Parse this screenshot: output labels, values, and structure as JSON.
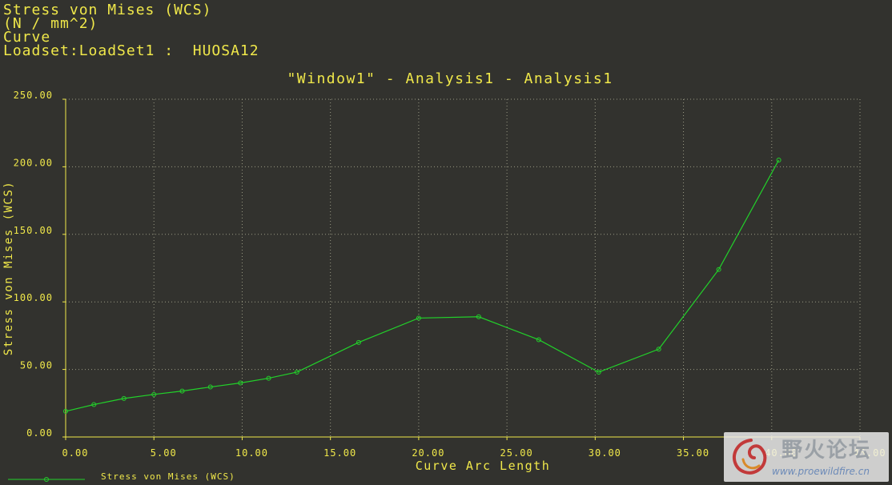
{
  "header": {
    "line1": "Stress von Mises (WCS)",
    "line2": "(N / mm^2)",
    "line3": "Curve",
    "line4": "Loadset:LoadSet1 :  HUOSA12"
  },
  "watermark": {
    "cn_text": "野火论坛",
    "url": "www.proewildfire.cn"
  },
  "colors": {
    "background": "#32322e",
    "text": "#f0e84a",
    "series": "#22d12a",
    "grid": "#9a9a84"
  },
  "chart_data": {
    "type": "line",
    "title": "\"Window1\" - Analysis1 - Analysis1",
    "xlabel": "Curve Arc Length",
    "ylabel": "Stress von Mises (WCS)",
    "xlim": [
      0,
      45
    ],
    "ylim": [
      0,
      250
    ],
    "x_ticks": [
      "0.00",
      "5.00",
      "10.00",
      "15.00",
      "20.00",
      "25.00",
      "30.00",
      "35.00",
      "40.00",
      "45.00"
    ],
    "y_ticks": [
      "0.00",
      "50.00",
      "100.00",
      "150.00",
      "200.00",
      "250.00"
    ],
    "x_tick_values": [
      0,
      5,
      10,
      15,
      20,
      25,
      30,
      35,
      40,
      45
    ],
    "y_tick_values": [
      0,
      50,
      100,
      150,
      200,
      250
    ],
    "grid": true,
    "legend_position": "bottom-left",
    "series": [
      {
        "name": "Stress von Mises (WCS)",
        "x": [
          0.0,
          1.6,
          3.3,
          5.0,
          6.6,
          8.2,
          9.9,
          11.5,
          13.1,
          16.6,
          20.0,
          23.4,
          26.8,
          30.2,
          33.6,
          37.0,
          40.4
        ],
        "y": [
          19,
          24,
          28.5,
          31.5,
          34,
          37,
          40,
          43.5,
          48,
          70,
          88,
          89,
          72,
          48,
          65,
          124,
          205
        ]
      }
    ]
  }
}
